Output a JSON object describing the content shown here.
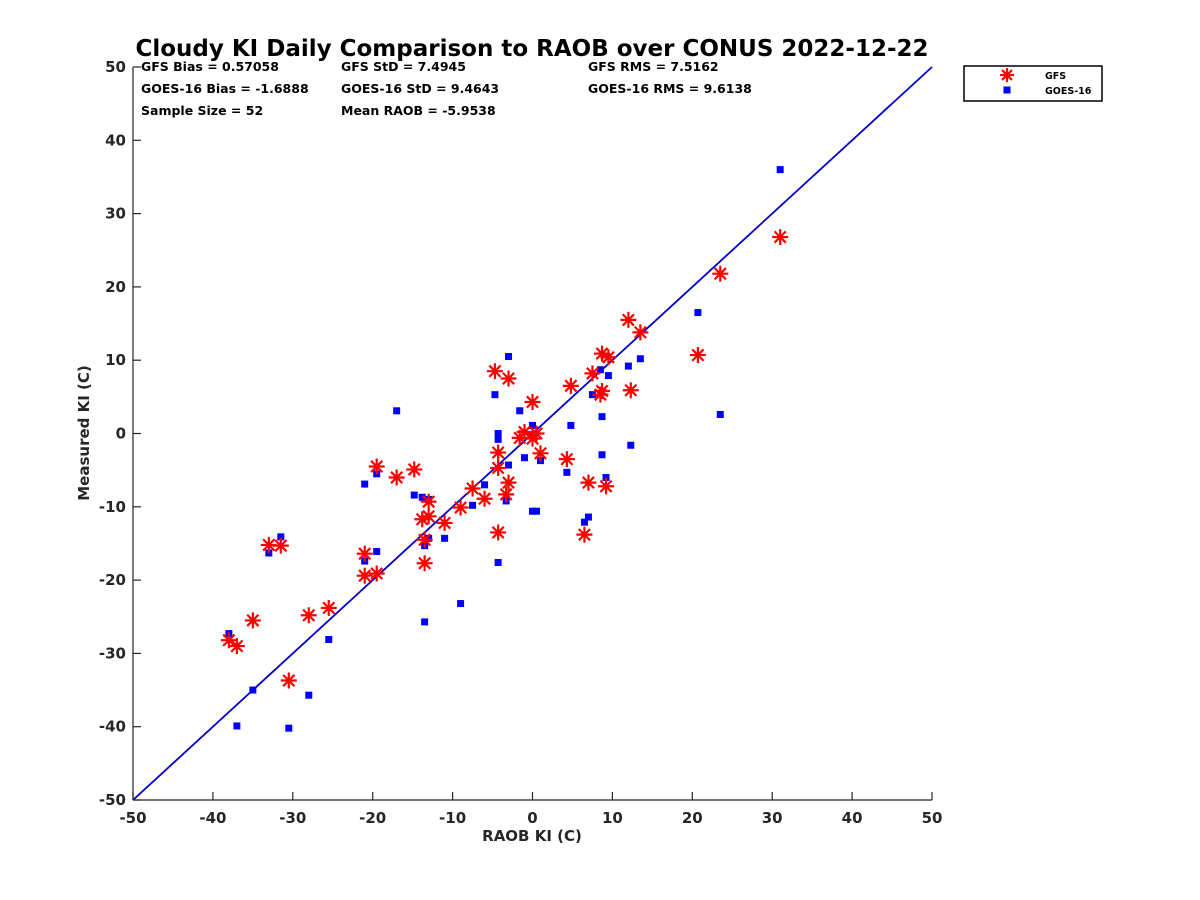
{
  "chart_data": {
    "type": "scatter",
    "title": "Cloudy KI Daily Comparison to RAOB over CONUS 2022-12-22",
    "xlabel": "RAOB KI (C)",
    "ylabel": "Measured KI (C)",
    "xlim": [
      -50,
      50
    ],
    "ylim": [
      -50,
      50
    ],
    "xticks": [
      "-50",
      "-40",
      "-30",
      "-20",
      "-10",
      "0",
      "10",
      "20",
      "30",
      "40",
      "50"
    ],
    "yticks": [
      "-50",
      "-40",
      "-30",
      "-20",
      "-10",
      "0",
      "10",
      "20",
      "30",
      "40",
      "50"
    ],
    "grid": false,
    "legend_position": "top-right",
    "reference_line": "y = x",
    "colors": {
      "gfs": "#ff0000",
      "goes": "#0000ff",
      "line": "#0000cc"
    },
    "stats": [
      [
        "GFS Bias = 0.57058",
        "GFS StD = 7.4945",
        "GFS RMS = 7.5162"
      ],
      [
        "GOES-16 Bias = -1.6888",
        "GOES-16 StD = 9.4643",
        "GOES-16 RMS = 9.6138"
      ],
      [
        "Sample Size = 52",
        "Mean RAOB = -5.9538",
        ""
      ]
    ],
    "series": [
      {
        "name": "GFS",
        "marker": "asterisk",
        "points": [
          [
            -38,
            -28.2
          ],
          [
            -37,
            -29
          ],
          [
            -35,
            -25.5
          ],
          [
            -33,
            -15.2
          ],
          [
            -31.5,
            -15.3
          ],
          [
            -30.5,
            -33.7
          ],
          [
            -28,
            -24.8
          ],
          [
            -25.5,
            -23.8
          ],
          [
            -21,
            -16.4
          ],
          [
            -21,
            -19.4
          ],
          [
            -19.5,
            -4.5
          ],
          [
            -19.5,
            -19.1
          ],
          [
            -17,
            -6
          ],
          [
            -14.8,
            -4.9
          ],
          [
            -13.8,
            -11.7
          ],
          [
            -13.5,
            -14.5
          ],
          [
            -13.5,
            -17.7
          ],
          [
            -13,
            -11.3
          ],
          [
            -13,
            -9.3
          ],
          [
            -11,
            -12.2
          ],
          [
            -9,
            -10.1
          ],
          [
            -7.5,
            -7.5
          ],
          [
            -6,
            -8.9
          ],
          [
            -4.7,
            8.5
          ],
          [
            -4.3,
            -2.6
          ],
          [
            -4.3,
            -13.5
          ],
          [
            -4.3,
            -4.7
          ],
          [
            -3.3,
            -8.3
          ],
          [
            -3,
            7.5
          ],
          [
            -3,
            -6.7
          ],
          [
            -1.6,
            -0.6
          ],
          [
            -1,
            0.2
          ],
          [
            0,
            4.3
          ],
          [
            0,
            -0.7
          ],
          [
            0.5,
            0
          ],
          [
            1,
            -2.7
          ],
          [
            4.3,
            -3.5
          ],
          [
            4.8,
            6.5
          ],
          [
            6.5,
            -13.8
          ],
          [
            7,
            -6.7
          ],
          [
            7.5,
            8.2
          ],
          [
            8.5,
            5.3
          ],
          [
            8.7,
            5.8
          ],
          [
            8.7,
            10.9
          ],
          [
            9.2,
            -7.2
          ],
          [
            9.5,
            10.4
          ],
          [
            12,
            15.5
          ],
          [
            12.3,
            5.9
          ],
          [
            13.5,
            13.8
          ],
          [
            20.7,
            10.7
          ],
          [
            23.5,
            21.8
          ],
          [
            31,
            26.8
          ]
        ]
      },
      {
        "name": "GOES-16",
        "marker": "square",
        "points": [
          [
            -38,
            -27.3
          ],
          [
            -37,
            -39.9
          ],
          [
            -35,
            -35
          ],
          [
            -33,
            -16.3
          ],
          [
            -31.5,
            -14.1
          ],
          [
            -30.5,
            -40.2
          ],
          [
            -28,
            -35.7
          ],
          [
            -25.5,
            -28.1
          ],
          [
            -21,
            -6.9
          ],
          [
            -21,
            -17.4
          ],
          [
            -19.5,
            -5.5
          ],
          [
            -19.5,
            -16.1
          ],
          [
            -17,
            3.1
          ],
          [
            -14.8,
            -8.4
          ],
          [
            -13.8,
            -8.7
          ],
          [
            -13.5,
            -15.3
          ],
          [
            -13.5,
            -25.7
          ],
          [
            -13,
            -14.3
          ],
          [
            -13,
            -9
          ],
          [
            -11,
            -14.3
          ],
          [
            -9,
            -23.2
          ],
          [
            -7.5,
            -9.8
          ],
          [
            -6,
            -7
          ],
          [
            -4.7,
            5.3
          ],
          [
            -4.3,
            0
          ],
          [
            -4.3,
            -17.6
          ],
          [
            -4.3,
            -0.8
          ],
          [
            -3.3,
            -9.2
          ],
          [
            -3,
            10.5
          ],
          [
            -3,
            -4.3
          ],
          [
            -1.6,
            3.1
          ],
          [
            -1,
            -3.3
          ],
          [
            0,
            1.1
          ],
          [
            0,
            -10.6
          ],
          [
            0.5,
            -10.6
          ],
          [
            1,
            -3.7
          ],
          [
            4.3,
            -5.3
          ],
          [
            4.8,
            1.1
          ],
          [
            6.5,
            -12.1
          ],
          [
            7,
            -11.4
          ],
          [
            7.5,
            5.3
          ],
          [
            8.5,
            8.7
          ],
          [
            8.7,
            2.3
          ],
          [
            8.7,
            -2.9
          ],
          [
            9.2,
            -6
          ],
          [
            9.5,
            7.9
          ],
          [
            12,
            9.2
          ],
          [
            12.3,
            -1.6
          ],
          [
            13.5,
            10.2
          ],
          [
            20.7,
            16.5
          ],
          [
            23.5,
            2.6
          ],
          [
            31,
            36
          ]
        ]
      }
    ]
  }
}
